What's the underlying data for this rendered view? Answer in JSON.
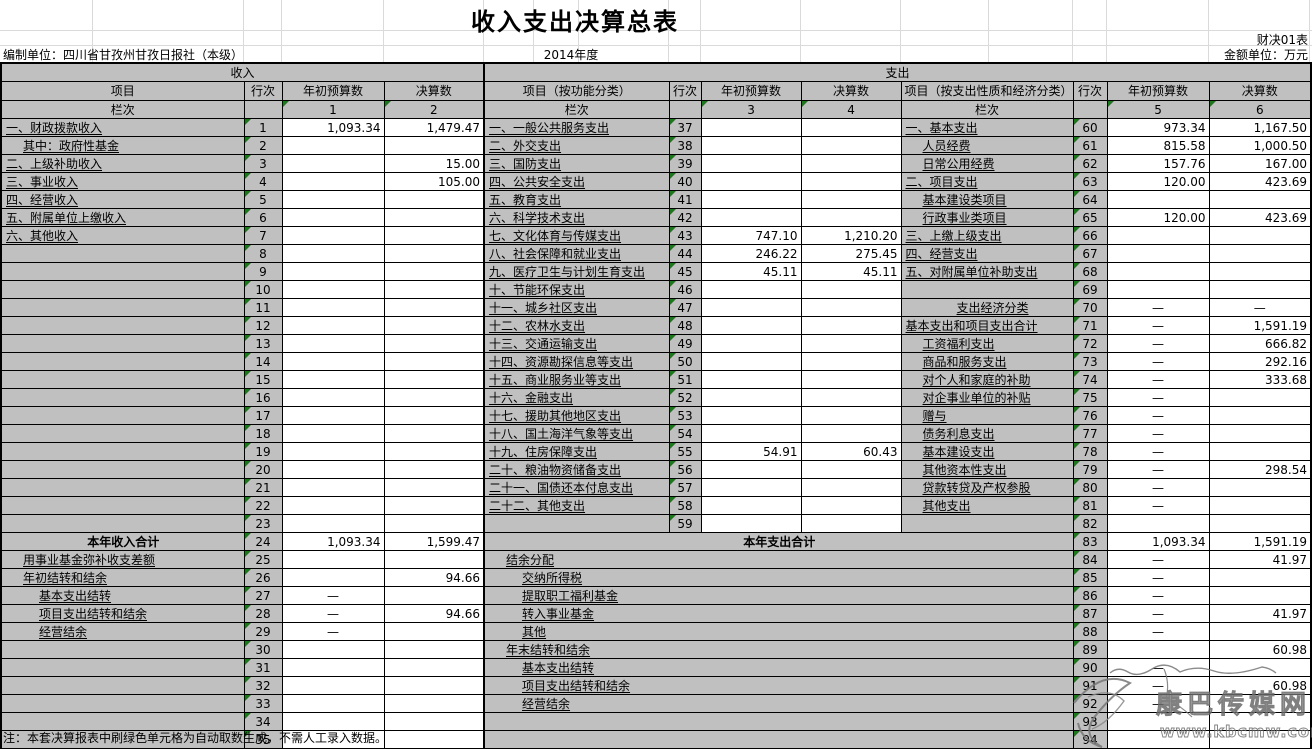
{
  "meta": {
    "title": "收入支出决算总表",
    "form_code": "财决01表",
    "prepared_by": "编制单位：四川省甘孜州甘孜日报社（本级）",
    "year": "2014年度",
    "unit": "金额单位：万元",
    "note": "注：本套决算报表中刷绿色单元格为自动取数生成，不需人工录入数据。",
    "watermark_text": "康巴传媒网",
    "watermark_url": "www.kbcmw.com"
  },
  "colors": {
    "label_cell_grey": "#c0c0c0",
    "auto_marker_green": "#1a7a1a",
    "border_black": "#000000"
  },
  "headers": {
    "income": "收入",
    "expenditure": "支出",
    "item": "项目",
    "item_func": "项目（按功能分类）",
    "item_econ": "项目（按支出性质和经济分类）",
    "row_no": "行次",
    "budget": "年初预算数",
    "final": "决算数",
    "lanci": "栏次",
    "col_nums": [
      "1",
      "2",
      "3",
      "4",
      "5",
      "6"
    ]
  },
  "rows": [
    {
      "left": {
        "t": "一、财政拨款收入",
        "i": 0,
        "n": "1",
        "v1": "1,093.34",
        "v2": "1,479.47"
      },
      "mid": {
        "t": "一、一般公共服务支出",
        "n": "37",
        "v1": "",
        "v2": ""
      },
      "right": {
        "t": "一、基本支出",
        "i": 0,
        "n": "60",
        "v1": "973.34",
        "v2": "1,167.50"
      }
    },
    {
      "left": {
        "t": "其中：政府性基金",
        "i": 1,
        "n": "2",
        "v1": "",
        "v2": ""
      },
      "mid": {
        "t": "二、外交支出",
        "n": "38",
        "v1": "",
        "v2": ""
      },
      "right": {
        "t": "人员经费",
        "i": 1,
        "n": "61",
        "v1": "815.58",
        "v2": "1,000.50"
      }
    },
    {
      "left": {
        "t": "二、上级补助收入",
        "i": 0,
        "n": "3",
        "v1": "",
        "v2": "15.00"
      },
      "mid": {
        "t": "三、国防支出",
        "n": "39",
        "v1": "",
        "v2": ""
      },
      "right": {
        "t": "日常公用经费",
        "i": 1,
        "n": "62",
        "v1": "157.76",
        "v2": "167.00"
      }
    },
    {
      "left": {
        "t": "三、事业收入",
        "i": 0,
        "n": "4",
        "v1": "",
        "v2": "105.00"
      },
      "mid": {
        "t": "四、公共安全支出",
        "n": "40",
        "v1": "",
        "v2": ""
      },
      "right": {
        "t": "二、项目支出",
        "i": 0,
        "n": "63",
        "v1": "120.00",
        "v2": "423.69"
      }
    },
    {
      "left": {
        "t": "四、经营收入",
        "i": 0,
        "n": "5",
        "v1": "",
        "v2": ""
      },
      "mid": {
        "t": "五、教育支出",
        "n": "41",
        "v1": "",
        "v2": ""
      },
      "right": {
        "t": "基本建设类项目",
        "i": 1,
        "n": "64",
        "v1": "",
        "v2": ""
      }
    },
    {
      "left": {
        "t": "五、附属单位上缴收入",
        "i": 0,
        "n": "6",
        "v1": "",
        "v2": ""
      },
      "mid": {
        "t": "六、科学技术支出",
        "n": "42",
        "v1": "",
        "v2": ""
      },
      "right": {
        "t": "行政事业类项目",
        "i": 1,
        "n": "65",
        "v1": "120.00",
        "v2": "423.69"
      }
    },
    {
      "left": {
        "t": "六、其他收入",
        "i": 0,
        "n": "7",
        "v1": "",
        "v2": ""
      },
      "mid": {
        "t": "七、文化体育与传媒支出",
        "n": "43",
        "v1": "747.10",
        "v2": "1,210.20"
      },
      "right": {
        "t": "三、上缴上级支出",
        "i": 0,
        "n": "66",
        "v1": "",
        "v2": ""
      }
    },
    {
      "left": {
        "t": "",
        "i": 0,
        "n": "8",
        "v1": "",
        "v2": ""
      },
      "mid": {
        "t": "八、社会保障和就业支出",
        "n": "44",
        "v1": "246.22",
        "v2": "275.45"
      },
      "right": {
        "t": "四、经营支出",
        "i": 0,
        "n": "67",
        "v1": "",
        "v2": ""
      }
    },
    {
      "left": {
        "t": "",
        "i": 0,
        "n": "9",
        "v1": "",
        "v2": ""
      },
      "mid": {
        "t": "九、医疗卫生与计划生育支出",
        "n": "45",
        "v1": "45.11",
        "v2": "45.11"
      },
      "right": {
        "t": "五、对附属单位补助支出",
        "i": 0,
        "n": "68",
        "v1": "",
        "v2": ""
      }
    },
    {
      "left": {
        "t": "",
        "i": 0,
        "n": "10",
        "v1": "",
        "v2": ""
      },
      "mid": {
        "t": "十、节能环保支出",
        "n": "46",
        "v1": "",
        "v2": ""
      },
      "right": {
        "t": "",
        "i": 0,
        "n": "69",
        "v1": "",
        "v2": ""
      }
    },
    {
      "left": {
        "t": "",
        "i": 0,
        "n": "11",
        "v1": "",
        "v2": ""
      },
      "mid": {
        "t": "十一、城乡社区支出",
        "n": "47",
        "v1": "",
        "v2": ""
      },
      "right": {
        "t": "支出经济分类",
        "i": 3,
        "n": "70",
        "v1": "—",
        "v2": "—"
      }
    },
    {
      "left": {
        "t": "",
        "i": 0,
        "n": "12",
        "v1": "",
        "v2": ""
      },
      "mid": {
        "t": "十二、农林水支出",
        "n": "48",
        "v1": "",
        "v2": ""
      },
      "right": {
        "t": "基本支出和项目支出合计",
        "i": 0,
        "n": "71",
        "v1": "—",
        "v2": "1,591.19"
      }
    },
    {
      "left": {
        "t": "",
        "i": 0,
        "n": "13",
        "v1": "",
        "v2": ""
      },
      "mid": {
        "t": "十三、交通运输支出",
        "n": "49",
        "v1": "",
        "v2": ""
      },
      "right": {
        "t": "工资福利支出",
        "i": 1,
        "n": "72",
        "v1": "—",
        "v2": "666.82"
      }
    },
    {
      "left": {
        "t": "",
        "i": 0,
        "n": "14",
        "v1": "",
        "v2": ""
      },
      "mid": {
        "t": "十四、资源勘探信息等支出",
        "n": "50",
        "v1": "",
        "v2": ""
      },
      "right": {
        "t": "商品和服务支出",
        "i": 1,
        "n": "73",
        "v1": "—",
        "v2": "292.16"
      }
    },
    {
      "left": {
        "t": "",
        "i": 0,
        "n": "15",
        "v1": "",
        "v2": ""
      },
      "mid": {
        "t": "十五、商业服务业等支出",
        "n": "51",
        "v1": "",
        "v2": ""
      },
      "right": {
        "t": "对个人和家庭的补助",
        "i": 1,
        "n": "74",
        "v1": "—",
        "v2": "333.68"
      }
    },
    {
      "left": {
        "t": "",
        "i": 0,
        "n": "16",
        "v1": "",
        "v2": ""
      },
      "mid": {
        "t": "十六、金融支出",
        "n": "52",
        "v1": "",
        "v2": ""
      },
      "right": {
        "t": "对企事业单位的补贴",
        "i": 1,
        "n": "75",
        "v1": "—",
        "v2": ""
      }
    },
    {
      "left": {
        "t": "",
        "i": 0,
        "n": "17",
        "v1": "",
        "v2": ""
      },
      "mid": {
        "t": "十七、援助其他地区支出",
        "n": "53",
        "v1": "",
        "v2": ""
      },
      "right": {
        "t": "赠与",
        "i": 1,
        "n": "76",
        "v1": "—",
        "v2": ""
      }
    },
    {
      "left": {
        "t": "",
        "i": 0,
        "n": "18",
        "v1": "",
        "v2": ""
      },
      "mid": {
        "t": "十八、国土海洋气象等支出",
        "n": "54",
        "v1": "",
        "v2": ""
      },
      "right": {
        "t": "债务利息支出",
        "i": 1,
        "n": "77",
        "v1": "—",
        "v2": ""
      }
    },
    {
      "left": {
        "t": "",
        "i": 0,
        "n": "19",
        "v1": "",
        "v2": ""
      },
      "mid": {
        "t": "十九、住房保障支出",
        "n": "55",
        "v1": "54.91",
        "v2": "60.43"
      },
      "right": {
        "t": "基本建设支出",
        "i": 1,
        "n": "78",
        "v1": "—",
        "v2": ""
      }
    },
    {
      "left": {
        "t": "",
        "i": 0,
        "n": "20",
        "v1": "",
        "v2": ""
      },
      "mid": {
        "t": "二十、粮油物资储备支出",
        "n": "56",
        "v1": "",
        "v2": ""
      },
      "right": {
        "t": "其他资本性支出",
        "i": 1,
        "n": "79",
        "v1": "—",
        "v2": "298.54"
      }
    },
    {
      "left": {
        "t": "",
        "i": 0,
        "n": "21",
        "v1": "",
        "v2": ""
      },
      "mid": {
        "t": "二十一、国债还本付息支出",
        "n": "57",
        "v1": "",
        "v2": ""
      },
      "right": {
        "t": "贷款转贷及产权参股",
        "i": 1,
        "n": "80",
        "v1": "—",
        "v2": ""
      }
    },
    {
      "left": {
        "t": "",
        "i": 0,
        "n": "22",
        "v1": "",
        "v2": ""
      },
      "mid": {
        "t": "二十二、其他支出",
        "n": "58",
        "v1": "",
        "v2": ""
      },
      "right": {
        "t": "其他支出",
        "i": 1,
        "n": "81",
        "v1": "—",
        "v2": ""
      }
    },
    {
      "left": {
        "t": "",
        "i": 0,
        "n": "23",
        "v1": "",
        "v2": ""
      },
      "mid": {
        "t": "",
        "n": "59",
        "v1": "",
        "v2": ""
      },
      "right": {
        "t": "",
        "i": 0,
        "n": "82",
        "v1": "",
        "v2": ""
      }
    },
    {
      "left": {
        "t": "本年收入合计",
        "b": true,
        "n": "24",
        "v1": "1,093.34",
        "v2": "1,599.47"
      },
      "mid": {
        "merged": true,
        "t": "本年支出合计",
        "b": true
      },
      "right": {
        "n": "83",
        "v1": "1,093.34",
        "v2": "1,591.19"
      }
    },
    {
      "left": {
        "t": "用事业基金弥补收支差额",
        "i": 1,
        "n": "25",
        "v1": "",
        "v2": ""
      },
      "mid": {
        "merged": true,
        "t": "结余分配",
        "i": 1
      },
      "right": {
        "n": "84",
        "v1": "—",
        "v2": "41.97"
      }
    },
    {
      "left": {
        "t": "年初结转和结余",
        "i": 1,
        "n": "26",
        "v1": "",
        "v2": "94.66"
      },
      "mid": {
        "merged": true,
        "t": "交纳所得税",
        "i": 2
      },
      "right": {
        "n": "85",
        "v1": "—",
        "v2": ""
      }
    },
    {
      "left": {
        "t": "基本支出结转",
        "i": 2,
        "n": "27",
        "v1": "—",
        "v2": ""
      },
      "mid": {
        "merged": true,
        "t": "提取职工福利基金",
        "i": 2
      },
      "right": {
        "n": "86",
        "v1": "—",
        "v2": ""
      }
    },
    {
      "left": {
        "t": "项目支出结转和结余",
        "i": 2,
        "n": "28",
        "v1": "—",
        "v2": "94.66"
      },
      "mid": {
        "merged": true,
        "t": "转入事业基金",
        "i": 2
      },
      "right": {
        "n": "87",
        "v1": "—",
        "v2": "41.97"
      }
    },
    {
      "left": {
        "t": "经营结余",
        "i": 2,
        "n": "29",
        "v1": "—",
        "v2": ""
      },
      "mid": {
        "merged": true,
        "t": "其他",
        "i": 2
      },
      "right": {
        "n": "88",
        "v1": "—",
        "v2": ""
      }
    },
    {
      "left": {
        "t": "",
        "i": 0,
        "n": "30",
        "v1": "",
        "v2": ""
      },
      "mid": {
        "merged": true,
        "t": "年末结转和结余",
        "i": 1
      },
      "right": {
        "n": "89",
        "v1": "",
        "v2": "60.98"
      }
    },
    {
      "left": {
        "t": "",
        "i": 0,
        "n": "31",
        "v1": "",
        "v2": ""
      },
      "mid": {
        "merged": true,
        "t": "基本支出结转",
        "i": 2
      },
      "right": {
        "n": "90",
        "v1": "—",
        "v2": ""
      }
    },
    {
      "left": {
        "t": "",
        "i": 0,
        "n": "32",
        "v1": "",
        "v2": ""
      },
      "mid": {
        "merged": true,
        "t": "项目支出结转和结余",
        "i": 2
      },
      "right": {
        "n": "91",
        "v1": "—",
        "v2": "60.98"
      }
    },
    {
      "left": {
        "t": "",
        "i": 0,
        "n": "33",
        "v1": "",
        "v2": ""
      },
      "mid": {
        "merged": true,
        "t": "经营结余",
        "i": 2
      },
      "right": {
        "n": "92",
        "v1": "—",
        "v2": ""
      }
    },
    {
      "left": {
        "t": "",
        "i": 0,
        "n": "34",
        "v1": "",
        "v2": ""
      },
      "mid": {
        "merged": true,
        "t": ""
      },
      "right": {
        "n": "93",
        "v1": "",
        "v2": ""
      }
    },
    {
      "left": {
        "t": "",
        "i": 0,
        "n": "35",
        "v1": "",
        "v2": ""
      },
      "mid": {
        "merged": true,
        "t": ""
      },
      "right": {
        "n": "94",
        "v1": "",
        "v2": ""
      }
    },
    {
      "left": {
        "t": "总计",
        "b": true,
        "n": "36",
        "v1": "1,093.34",
        "v2": "1,694.14"
      },
      "mid": {
        "merged": true,
        "t": "总计",
        "b": true
      },
      "right": {
        "n": "95",
        "v1": "1,093.34",
        "v2": "1,694.14"
      }
    }
  ]
}
